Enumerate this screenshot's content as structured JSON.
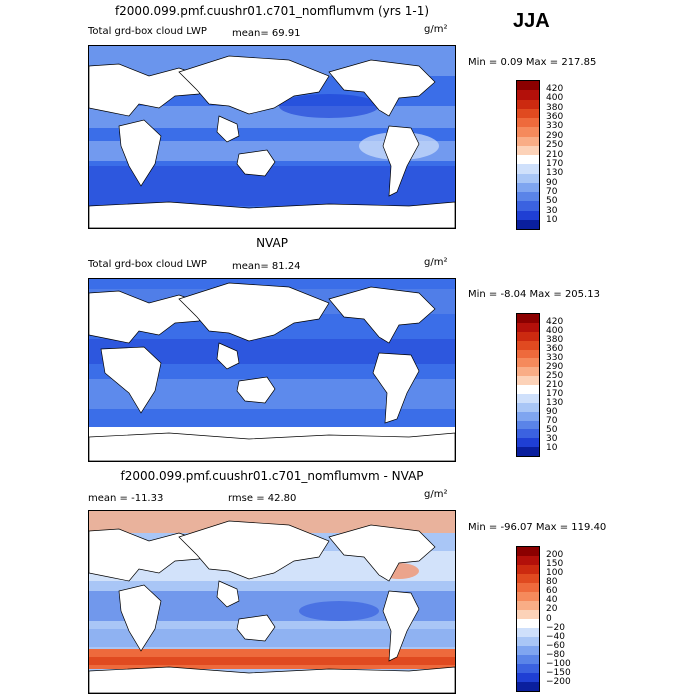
{
  "season": "JJA",
  "colors": {
    "land": "#ffffff",
    "deep_blue": "#1a3fd6",
    "mid_blue": "#3b6ee8",
    "light_blue": "#8fb3f2",
    "pale": "#dce8fb",
    "warm": "#f7a27c",
    "hot": "#e8431a",
    "coast": "#000000"
  },
  "panels": [
    {
      "title": "f2000.099.pmf.cuushr01.c701_nomflumvm (yrs 1-1)",
      "left_label": "Total grd-box cloud LWP",
      "mean_label": "mean=  69.91",
      "units": "g/m²",
      "minmax": "Min =   0.09 Max = 217.85",
      "colorbar": {
        "labels": [
          "420",
          "400",
          "380",
          "360",
          "330",
          "290",
          "250",
          "210",
          "170",
          "130",
          "90",
          "70",
          "50",
          "30",
          "10"
        ],
        "colors": [
          "#8b0000",
          "#b3100a",
          "#cc2a10",
          "#e04a20",
          "#ee6a3c",
          "#f58a5c",
          "#f9ad86",
          "#fcd2b8",
          "#ffffff",
          "#cfe0fb",
          "#a9c6f6",
          "#7fa5f0",
          "#5a84e8",
          "#3b62e0",
          "#1f3fd4",
          "#0a1f9e"
        ]
      }
    },
    {
      "title": "NVAP",
      "left_label": "Total grd-box cloud LWP",
      "mean_label": "mean=  81.24",
      "units": "g/m²",
      "minmax": "Min =  -8.04 Max = 205.13",
      "colorbar": {
        "labels": [
          "420",
          "400",
          "380",
          "360",
          "330",
          "290",
          "250",
          "210",
          "170",
          "130",
          "90",
          "70",
          "50",
          "30",
          "10"
        ],
        "colors": [
          "#8b0000",
          "#b3100a",
          "#cc2a10",
          "#e04a20",
          "#ee6a3c",
          "#f58a5c",
          "#f9ad86",
          "#fcd2b8",
          "#ffffff",
          "#cfe0fb",
          "#a9c6f6",
          "#7fa5f0",
          "#5a84e8",
          "#3b62e0",
          "#1f3fd4",
          "#0a1f9e"
        ]
      }
    },
    {
      "title": "f2000.099.pmf.cuushr01.c701_nomflumvm - NVAP",
      "left_label": "mean = -11.33",
      "mean_label": "rmse =  42.80",
      "units": "g/m²",
      "minmax": "Min = -96.07 Max = 119.40",
      "colorbar": {
        "labels": [
          "200",
          "150",
          "100",
          "80",
          "60",
          "40",
          "20",
          "0",
          "−20",
          "−40",
          "−60",
          "−80",
          "−100",
          "−150",
          "−200"
        ],
        "colors": [
          "#8b0000",
          "#b3100a",
          "#cc2a10",
          "#e04a20",
          "#ee6a3c",
          "#f58a5c",
          "#f9ad86",
          "#fcd2b8",
          "#ffffff",
          "#cfe0fb",
          "#a9c6f6",
          "#7fa5f0",
          "#5a84e8",
          "#3b62e0",
          "#1f3fd4",
          "#0a1f9e"
        ]
      }
    }
  ]
}
